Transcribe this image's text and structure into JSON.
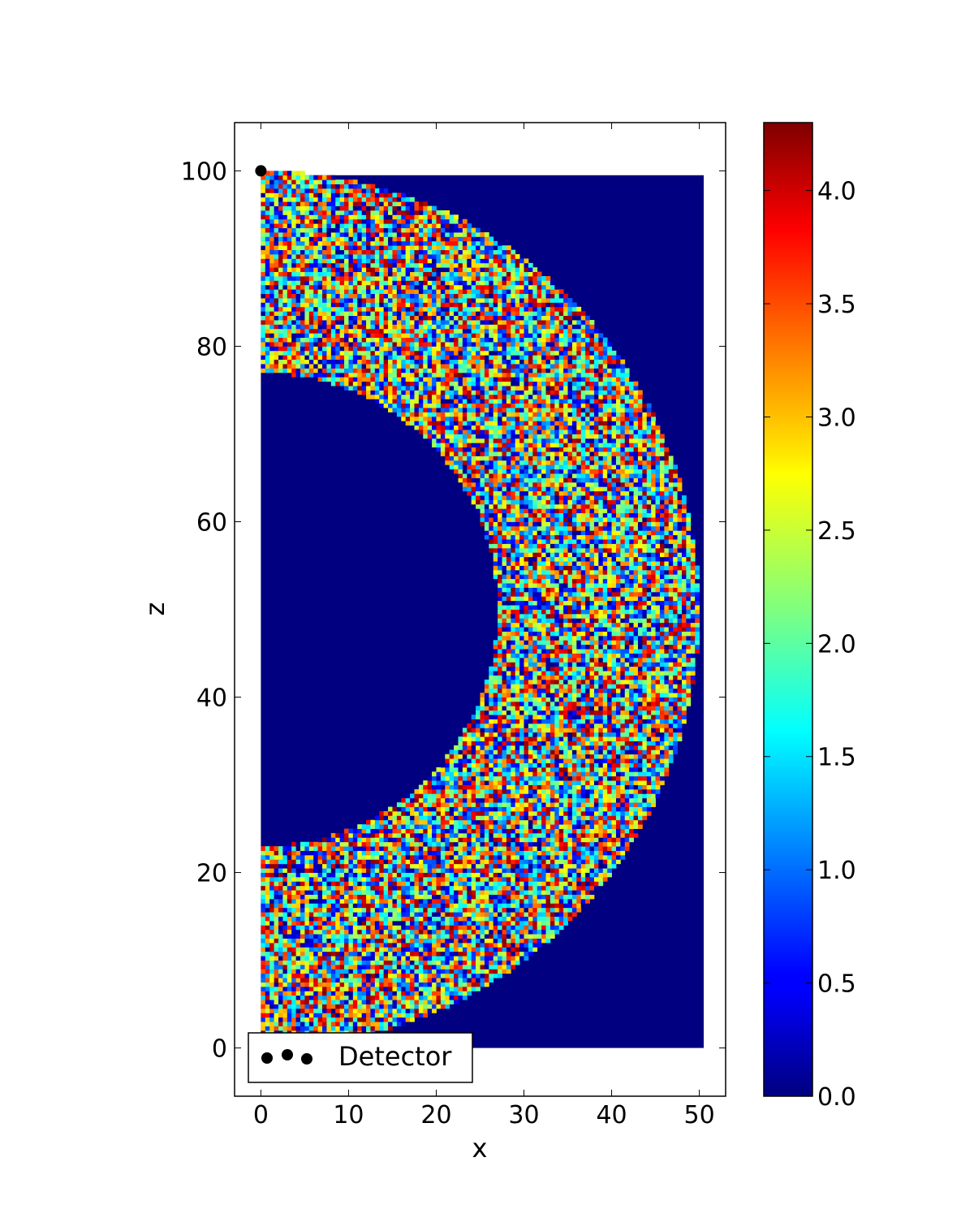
{
  "chart_data": {
    "type": "heatmap",
    "title": "",
    "xlabel": "x",
    "ylabel": "z",
    "xlim": [
      -3,
      53
    ],
    "ylim": [
      -5.5,
      105.5
    ],
    "xticks": [
      0,
      10,
      20,
      30,
      40,
      50
    ],
    "yticks": [
      0,
      20,
      40,
      60,
      80,
      100
    ],
    "grid": false,
    "field": {
      "x_range": [
        0,
        50
      ],
      "z_range": [
        0,
        100
      ],
      "description": "annular region with random cell values between inner and outer circular boundaries centered at x=0, z=50",
      "center": [
        0,
        50
      ],
      "inner_radius": 27,
      "outer_radius": 50,
      "value_range": [
        0.0,
        4.3
      ],
      "background_value": 0.0
    },
    "colorbar": {
      "colormap": "jet",
      "vmin": 0.0,
      "vmax": 4.3,
      "ticks": [
        "0.0",
        "0.5",
        "1.0",
        "1.5",
        "2.0",
        "2.5",
        "3.0",
        "3.5",
        "4.0"
      ]
    },
    "detector": {
      "x": 0,
      "z": 100,
      "color": "#000000"
    },
    "legend": {
      "placement": "lower-left",
      "entries": [
        {
          "label": "Detector",
          "marker": "circle",
          "color": "#000000"
        }
      ]
    }
  }
}
